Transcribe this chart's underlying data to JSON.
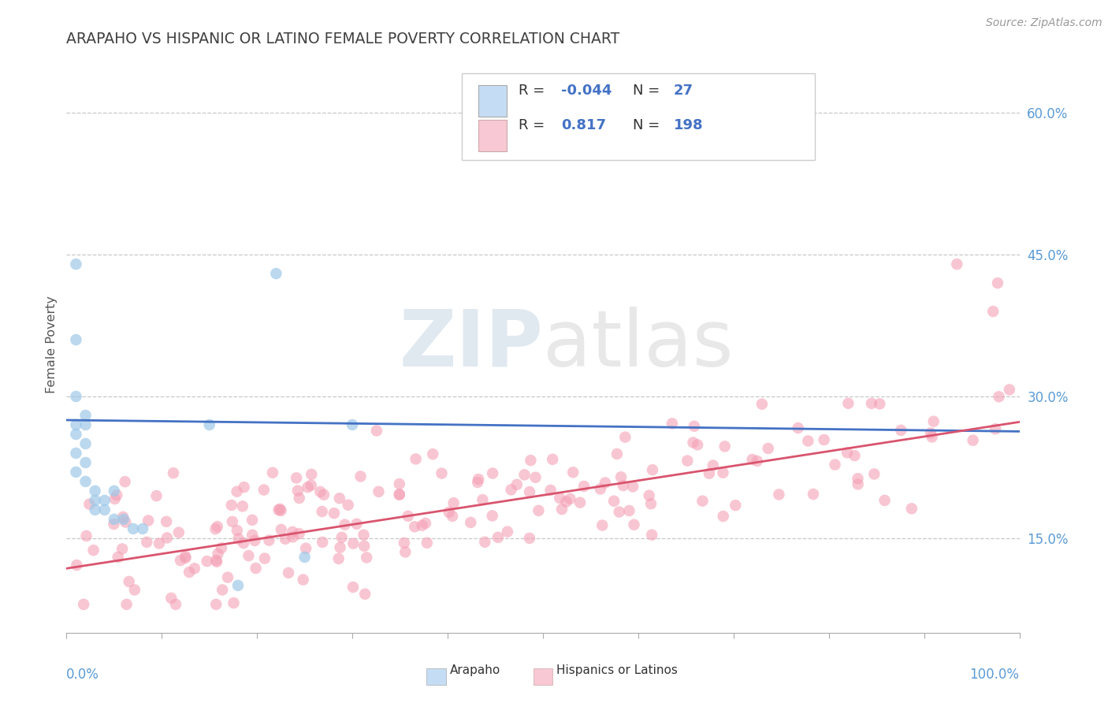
{
  "title": "ARAPAHO VS HISPANIC OR LATINO FEMALE POVERTY CORRELATION CHART",
  "source": "Source: ZipAtlas.com",
  "ylabel": "Female Poverty",
  "yticks": [
    "15.0%",
    "30.0%",
    "45.0%",
    "60.0%"
  ],
  "ytick_vals": [
    0.15,
    0.3,
    0.45,
    0.6
  ],
  "xlim": [
    0.0,
    1.0
  ],
  "ylim": [
    0.05,
    0.66
  ],
  "blue_R": -0.044,
  "blue_N": 27,
  "pink_R": 0.817,
  "pink_N": 198,
  "blue_scatter_color": "#9ec8e8",
  "pink_scatter_color": "#f4a0b5",
  "legend_blue_face": "#c5ddf4",
  "legend_pink_face": "#f8c8d4",
  "watermark_zip": "ZIP",
  "watermark_atlas": "atlas",
  "background_color": "#ffffff",
  "blue_line_color": "#4472C4",
  "pink_line_color": "#d9546e",
  "legend_text_color": "#333333",
  "legend_value_color": "#4472C4",
  "right_tick_color": "#5B9BD5",
  "bottom_label_color": "#5B9BD5"
}
